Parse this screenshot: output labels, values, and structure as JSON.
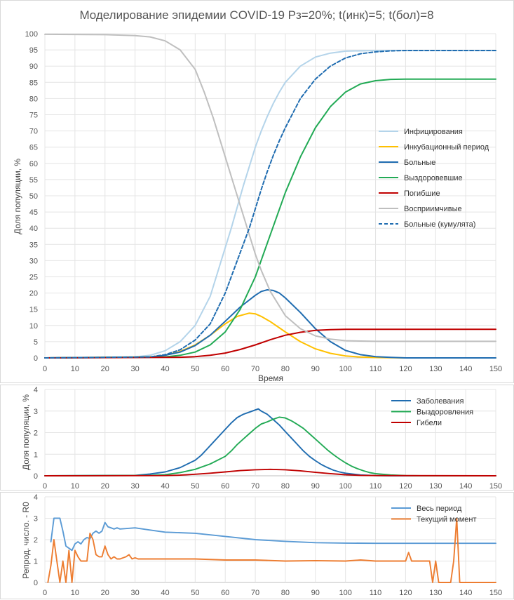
{
  "chart_data": [
    {
      "type": "line",
      "title": "Моделирование эпидемии COVID-19 Рз=20%; t(инк)=5; t(бол)=8",
      "xlabel": "Время",
      "ylabel": "Доля популяции, %",
      "xlim": [
        0,
        150
      ],
      "ylim": [
        0,
        100
      ],
      "xticks": [
        0,
        10,
        20,
        30,
        40,
        50,
        60,
        70,
        80,
        90,
        100,
        110,
        120,
        130,
        140,
        150
      ],
      "yticks": [
        0,
        5,
        10,
        15,
        20,
        25,
        30,
        35,
        40,
        45,
        50,
        55,
        60,
        65,
        70,
        75,
        80,
        85,
        90,
        95,
        100
      ],
      "grid": true,
      "legend_position": "right",
      "series": [
        {
          "name": "Инфицирования",
          "color": "#b4d4ea",
          "dash": false,
          "x": [
            0,
            30,
            35,
            40,
            45,
            50,
            55,
            60,
            62,
            64,
            66,
            68,
            70,
            72,
            74,
            76,
            78,
            80,
            85,
            90,
            95,
            100,
            110,
            120,
            150
          ],
          "y": [
            0,
            0.3,
            0.8,
            2.2,
            5,
            10,
            19,
            34,
            40,
            46.5,
            53,
            59,
            65,
            70,
            74.5,
            78.5,
            82,
            85,
            90,
            92.8,
            94,
            94.6,
            94.8,
            94.8,
            94.8
          ]
        },
        {
          "name": "Инкубационный период",
          "color": "#ffc000",
          "dash": false,
          "x": [
            0,
            35,
            40,
            45,
            50,
            55,
            60,
            64,
            68,
            70,
            72,
            75,
            80,
            85,
            90,
            95,
            100,
            105,
            110,
            120,
            150
          ],
          "y": [
            0,
            0.3,
            0.8,
            2,
            4,
            7,
            10.5,
            12.8,
            13.8,
            13.6,
            12.8,
            11.2,
            8,
            5,
            2.8,
            1.4,
            0.6,
            0.25,
            0.1,
            0,
            0
          ]
        },
        {
          "name": "Больные",
          "color": "#1f6cb0",
          "dash": false,
          "x": [
            0,
            35,
            40,
            45,
            50,
            55,
            60,
            65,
            70,
            72,
            74,
            76,
            78,
            80,
            85,
            90,
            95,
            100,
            105,
            110,
            115,
            120,
            150
          ],
          "y": [
            0,
            0.2,
            0.8,
            1.8,
            3.8,
            7,
            11.3,
            15.7,
            19.3,
            20.5,
            21,
            20.8,
            20,
            18.5,
            14,
            9,
            5,
            2.3,
            1,
            0.4,
            0.15,
            0,
            0
          ]
        },
        {
          "name": "Выздоровевшие",
          "color": "#22aa55",
          "dash": false,
          "x": [
            0,
            40,
            45,
            50,
            55,
            60,
            65,
            70,
            75,
            80,
            85,
            90,
            95,
            100,
            105,
            110,
            115,
            120,
            130,
            150
          ],
          "y": [
            0,
            0.3,
            0.8,
            1.8,
            4,
            8,
            15,
            25,
            38,
            51,
            62,
            71,
            77.5,
            82,
            84.5,
            85.5,
            85.9,
            86,
            86,
            86
          ]
        },
        {
          "name": "Погибшие",
          "color": "#c00000",
          "dash": false,
          "x": [
            0,
            45,
            50,
            55,
            60,
            65,
            70,
            75,
            80,
            85,
            90,
            95,
            100,
            110,
            150
          ],
          "y": [
            0,
            0.2,
            0.4,
            0.8,
            1.5,
            2.6,
            4,
            5.6,
            7,
            7.9,
            8.5,
            8.7,
            8.8,
            8.8,
            8.8
          ]
        },
        {
          "name": "Восприимчивые",
          "color": "#bfbfbf",
          "dash": false,
          "x": [
            0,
            20,
            30,
            35,
            40,
            45,
            50,
            53,
            56,
            60,
            64,
            68,
            70,
            72,
            75,
            80,
            85,
            90,
            95,
            100,
            110,
            120,
            150
          ],
          "y": [
            99.8,
            99.7,
            99.4,
            99,
            97.8,
            95,
            89,
            82,
            74,
            62,
            50,
            38,
            32,
            27,
            20.5,
            13,
            9,
            6.8,
            5.8,
            5.3,
            5.1,
            5.1,
            5.1
          ]
        },
        {
          "name": "Больные (кумулята)",
          "color": "#1f6cb0",
          "dash": true,
          "x": [
            0,
            35,
            40,
            45,
            50,
            55,
            60,
            64,
            68,
            70,
            72,
            74,
            76,
            78,
            80,
            85,
            90,
            95,
            100,
            105,
            110,
            115,
            120,
            130,
            150
          ],
          "y": [
            0,
            0.3,
            1,
            2.5,
            5.5,
            10.5,
            20,
            30,
            40,
            46,
            52,
            57.5,
            62.5,
            67,
            71,
            80,
            86,
            90,
            92.5,
            93.8,
            94.4,
            94.7,
            94.8,
            94.8,
            94.8
          ]
        }
      ]
    },
    {
      "type": "line",
      "title": "",
      "xlabel": "",
      "ylabel": "Доля популяции, %",
      "xlim": [
        0,
        150
      ],
      "ylim": [
        0,
        4
      ],
      "xticks": [
        0,
        10,
        20,
        30,
        40,
        50,
        60,
        70,
        80,
        90,
        100,
        110,
        120,
        130,
        140,
        150
      ],
      "yticks": [
        0,
        1,
        2,
        3,
        4
      ],
      "grid": true,
      "legend_position": "top-right",
      "series": [
        {
          "name": "Заболевания",
          "color": "#1f6cb0",
          "x": [
            0,
            30,
            35,
            40,
            45,
            50,
            52,
            54,
            56,
            58,
            60,
            62,
            64,
            66,
            68,
            70,
            71,
            72,
            74,
            76,
            78,
            80,
            82,
            84,
            86,
            88,
            90,
            92,
            94,
            96,
            98,
            100,
            105,
            110,
            115,
            120,
            150
          ],
          "y": [
            0,
            0.02,
            0.08,
            0.18,
            0.38,
            0.72,
            0.95,
            1.25,
            1.55,
            1.85,
            2.15,
            2.45,
            2.7,
            2.85,
            2.95,
            3.05,
            3.1,
            3.0,
            2.85,
            2.6,
            2.35,
            2.05,
            1.75,
            1.45,
            1.15,
            0.9,
            0.7,
            0.52,
            0.38,
            0.26,
            0.18,
            0.12,
            0.04,
            0.01,
            0,
            0,
            0
          ]
        },
        {
          "name": "Выздоровления",
          "color": "#22aa55",
          "x": [
            0,
            35,
            40,
            45,
            50,
            55,
            60,
            62,
            64,
            66,
            68,
            70,
            72,
            74,
            76,
            78,
            80,
            82,
            84,
            86,
            88,
            90,
            92,
            94,
            96,
            98,
            100,
            102,
            104,
            106,
            108,
            110,
            115,
            120,
            125,
            150
          ],
          "y": [
            0,
            0.02,
            0.05,
            0.15,
            0.3,
            0.55,
            0.9,
            1.15,
            1.45,
            1.7,
            1.95,
            2.2,
            2.4,
            2.5,
            2.62,
            2.72,
            2.68,
            2.55,
            2.38,
            2.2,
            1.95,
            1.7,
            1.45,
            1.2,
            0.98,
            0.78,
            0.6,
            0.45,
            0.33,
            0.23,
            0.15,
            0.1,
            0.04,
            0.01,
            0,
            0
          ]
        },
        {
          "name": "Гибели",
          "color": "#c00000",
          "x": [
            0,
            40,
            45,
            50,
            55,
            60,
            65,
            70,
            75,
            80,
            85,
            90,
            95,
            100,
            105,
            110,
            150
          ],
          "y": [
            0,
            0.01,
            0.03,
            0.07,
            0.12,
            0.18,
            0.24,
            0.28,
            0.3,
            0.28,
            0.23,
            0.16,
            0.1,
            0.05,
            0.02,
            0.01,
            0
          ]
        }
      ]
    },
    {
      "type": "line",
      "title": "",
      "xlabel": "",
      "ylabel": "Репрод. число. - R0",
      "xlim": [
        0,
        150
      ],
      "ylim": [
        0,
        4
      ],
      "xticks": [
        0,
        10,
        20,
        30,
        40,
        50,
        60,
        70,
        80,
        90,
        100,
        110,
        120,
        130,
        140,
        150
      ],
      "yticks": [
        0,
        1,
        2,
        3,
        4
      ],
      "grid": true,
      "legend_position": "top-right",
      "series": [
        {
          "name": "Весь период",
          "color": "#5b9bd5",
          "x": [
            2,
            3,
            4,
            5,
            6,
            7,
            8,
            9,
            10,
            11,
            12,
            13,
            14,
            15,
            16,
            17,
            18,
            19,
            20,
            21,
            22,
            23,
            24,
            25,
            30,
            35,
            40,
            50,
            60,
            70,
            80,
            90,
            100,
            110,
            120,
            130,
            140,
            150
          ],
          "y": [
            1.9,
            3.0,
            3.0,
            3.0,
            2.4,
            1.7,
            1.6,
            1.5,
            1.8,
            1.9,
            1.8,
            2.0,
            2.1,
            2.05,
            2.3,
            2.4,
            2.3,
            2.4,
            2.8,
            2.6,
            2.55,
            2.5,
            2.55,
            2.5,
            2.55,
            2.45,
            2.35,
            2.3,
            2.15,
            2.0,
            1.92,
            1.86,
            1.84,
            1.83,
            1.83,
            1.83,
            1.83,
            1.83
          ]
        },
        {
          "name": "Текущий момент",
          "color": "#ed7d31",
          "x": [
            1,
            2,
            3,
            4,
            5,
            6,
            7,
            8,
            9,
            10,
            11,
            12,
            13,
            14,
            15,
            16,
            17,
            18,
            19,
            20,
            21,
            22,
            23,
            24,
            25,
            26,
            27,
            28,
            29,
            30,
            31,
            35,
            40,
            50,
            60,
            70,
            80,
            90,
            100,
            105,
            110,
            115,
            120,
            121,
            122,
            123,
            125,
            127,
            128,
            129,
            130,
            131,
            132,
            133,
            134,
            135,
            136,
            137,
            138,
            139,
            140,
            150
          ],
          "y": [
            0,
            0.8,
            2.0,
            1.0,
            0,
            1.0,
            0,
            1.5,
            0,
            1.5,
            1.2,
            1.0,
            1.0,
            1.0,
            2.3,
            2.0,
            1.3,
            1.2,
            1.2,
            1.7,
            1.3,
            1.1,
            1.2,
            1.1,
            1.1,
            1.15,
            1.2,
            1.3,
            1.1,
            1.15,
            1.1,
            1.1,
            1.1,
            1.1,
            1.05,
            1.05,
            1.0,
            1.02,
            1.0,
            1.05,
            1.0,
            1.0,
            1.0,
            1.4,
            1.0,
            1.0,
            1.0,
            1.0,
            1.0,
            0,
            1.0,
            0,
            0,
            0,
            0,
            0,
            1.0,
            3.0,
            0,
            0,
            0,
            0
          ]
        }
      ]
    }
  ]
}
